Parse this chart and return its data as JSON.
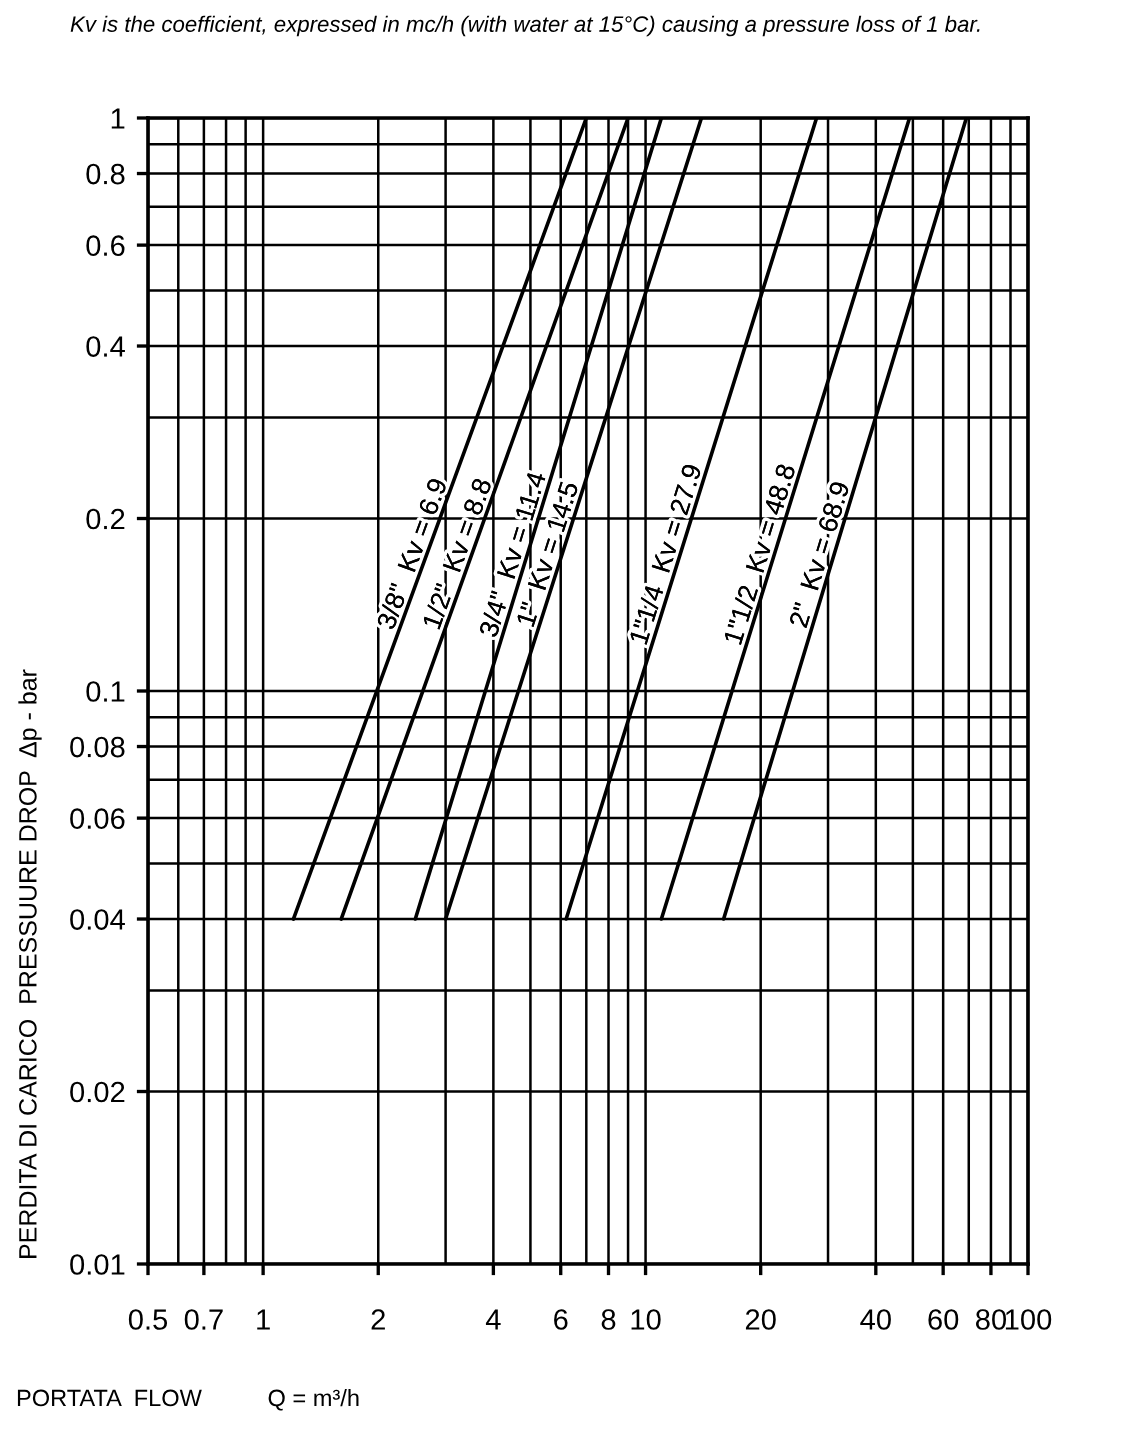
{
  "chart_data": {
    "type": "line",
    "title": "Kv is the coefficient, expressed in mc/h (with water at 15°C) causing a pressure loss of 1 bar.",
    "xlabel": "PORTATA  FLOW          Q = m³/h",
    "ylabel": "PERDITA DI CARICO  PRESSUURE DROP  Δp - bar",
    "log": "xy",
    "grid": true,
    "line_style": "solid",
    "xlim": [
      0.5,
      100
    ],
    "ylim": [
      0.01,
      1
    ],
    "xticks": [
      0.5,
      {
        "value": 0.6,
        "label": null
      },
      0.7,
      {
        "value": 0.8,
        "label": null
      },
      {
        "value": 0.9,
        "label": null
      },
      1,
      2,
      {
        "value": 3,
        "label": null
      },
      4,
      {
        "value": 5,
        "label": null
      },
      6,
      {
        "value": 7,
        "label": null
      },
      8,
      {
        "value": 9,
        "label": null
      },
      10,
      20,
      {
        "value": 30,
        "label": null
      },
      40,
      {
        "value": 50,
        "label": null
      },
      60,
      {
        "value": 70,
        "label": null
      },
      80,
      {
        "value": 90,
        "label": null
      },
      100
    ],
    "yticks": [
      0.01,
      0.02,
      {
        "value": 0.03,
        "label": null
      },
      0.04,
      {
        "value": 0.05,
        "label": null
      },
      0.06,
      {
        "value": 0.07,
        "label": null
      },
      0.08,
      {
        "value": 0.09,
        "label": null
      },
      0.1,
      0.2,
      {
        "value": 0.3,
        "label": null
      },
      0.4,
      {
        "value": 0.5,
        "label": null
      },
      0.6,
      {
        "value": 0.7,
        "label": null
      },
      0.8,
      {
        "value": 0.9,
        "label": null
      },
      1
    ],
    "series": [
      {
        "name": "3/8\"  Kv = 6.9",
        "color": "#000000",
        "x": [
          1.2,
          7.0
        ],
        "values": [
          0.04,
          1
        ]
      },
      {
        "name": "1/2\"  Kv = 8.8",
        "color": "#000000",
        "x": [
          1.6,
          9.0
        ],
        "values": [
          0.04,
          1
        ]
      },
      {
        "name": "3/4\"  Kv = 11.4",
        "color": "#000000",
        "x": [
          2.5,
          11
        ],
        "values": [
          0.04,
          1
        ]
      },
      {
        "name": "1\"  Kv = 14.5",
        "color": "#000000",
        "x": [
          3.0,
          14
        ],
        "values": [
          0.04,
          1
        ]
      },
      {
        "name": "1\"1/4  Kv = 27.9",
        "color": "#000000",
        "x": [
          6.2,
          28
        ],
        "values": [
          0.04,
          1
        ]
      },
      {
        "name": "1\"1/2  Kv = 48.8",
        "color": "#000000",
        "x": [
          11,
          49
        ],
        "values": [
          0.04,
          1
        ]
      },
      {
        "name": "2\"  Kv = 68.9",
        "color": "#000000",
        "x": [
          16,
          69
        ],
        "values": [
          0.04,
          1
        ]
      }
    ]
  }
}
